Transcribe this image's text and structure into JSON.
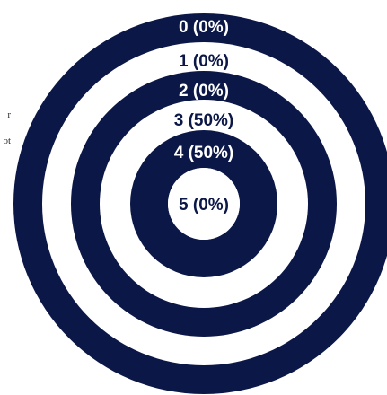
{
  "side_fragments": [
    "r",
    "ot"
  ],
  "chart_data": {
    "type": "concentric-rings",
    "title": "",
    "colors": {
      "dark": "#0b1747",
      "light": "#ffffff"
    },
    "rings": [
      {
        "label": "0 (0%)",
        "category": 0,
        "value_percent": 0
      },
      {
        "label": "1 (0%)",
        "category": 1,
        "value_percent": 0
      },
      {
        "label": "2 (0%)",
        "category": 2,
        "value_percent": 0
      },
      {
        "label": "3 (50%)",
        "category": 3,
        "value_percent": 50
      },
      {
        "label": "4 (50%)",
        "category": 4,
        "value_percent": 50
      },
      {
        "label": "5 (0%)",
        "category": 5,
        "value_percent": 0
      }
    ]
  }
}
